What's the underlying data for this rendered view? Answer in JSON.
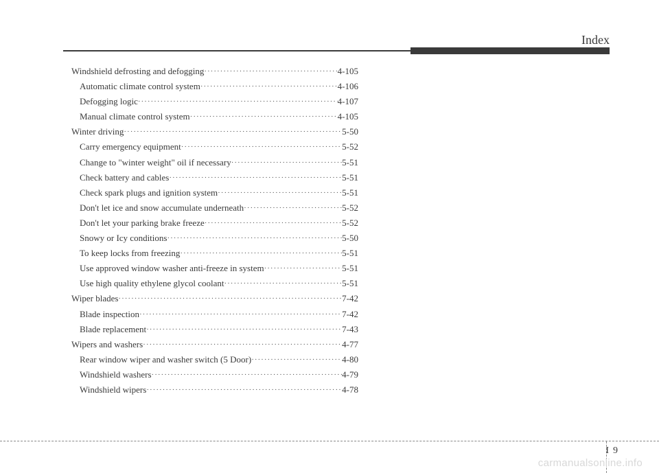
{
  "header": {
    "title": "Index"
  },
  "entries": [
    {
      "label": "Windshield defrosting and defogging",
      "page": "4-105",
      "sub": false
    },
    {
      "label": "Automatic climate control system",
      "page": "4-106",
      "sub": true
    },
    {
      "label": "Defogging logic",
      "page": "4-107",
      "sub": true
    },
    {
      "label": "Manual climate control system",
      "page": "4-105",
      "sub": true
    },
    {
      "label": "Winter driving",
      "page": "5-50",
      "sub": false
    },
    {
      "label": "Carry emergency equipment",
      "page": "5-52",
      "sub": true
    },
    {
      "label": "Change to \"winter weight\" oil if necessary",
      "page": "5-51",
      "sub": true
    },
    {
      "label": "Check battery and cables",
      "page": "5-51",
      "sub": true
    },
    {
      "label": "Check spark plugs and ignition system",
      "page": "5-51",
      "sub": true
    },
    {
      "label": "Don't let ice and snow accumulate underneath",
      "page": "5-52",
      "sub": true
    },
    {
      "label": "Don't let your parking brake freeze",
      "page": "5-52",
      "sub": true
    },
    {
      "label": "Snowy or Icy conditions",
      "page": "5-50",
      "sub": true
    },
    {
      "label": "To keep locks from freezing",
      "page": "5-51",
      "sub": true
    },
    {
      "label": "Use approved window washer anti-freeze in system",
      "page": "5-51",
      "sub": true
    },
    {
      "label": "Use high quality ethylene glycol coolant",
      "page": "5-51",
      "sub": true
    },
    {
      "label": "Wiper blades",
      "page": "7-42",
      "sub": false
    },
    {
      "label": "Blade inspection",
      "page": "7-42",
      "sub": true
    },
    {
      "label": "Blade replacement",
      "page": "7-43",
      "sub": true
    },
    {
      "label": "Wipers and washers",
      "page": "4-77",
      "sub": false
    },
    {
      "label": "Rear window wiper and washer switch (5 Door)",
      "page": "4-80",
      "sub": true
    },
    {
      "label": "Windshield washers",
      "page": "4-79",
      "sub": true
    },
    {
      "label": "Windshield wipers",
      "page": "4-78",
      "sub": true
    }
  ],
  "footer": {
    "section": "I",
    "page": "9"
  },
  "watermark": "carmanualsonline.info"
}
